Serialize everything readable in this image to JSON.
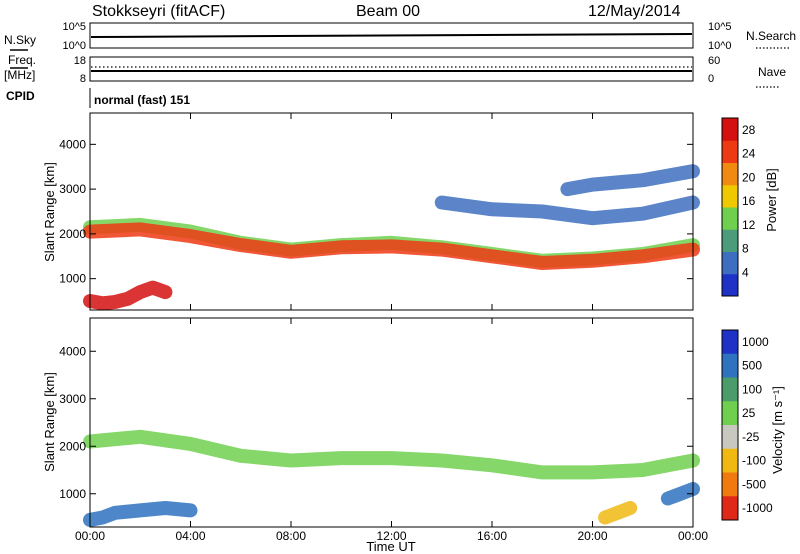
{
  "header": {
    "station": "Stokkseyri (fitACF)",
    "beam": "Beam 00",
    "date": "12/May/2014"
  },
  "side_labels": {
    "nsky": "N.Sky",
    "freq": "Freq.",
    "mhz": "[MHz]",
    "cpid": "CPID",
    "nsearch": "N.Search",
    "nave": "Nave"
  },
  "status_panels": {
    "nsky_ticks": [
      "10^5",
      "10^0"
    ],
    "nsearch_ticks": [
      "10^5",
      "10^0"
    ],
    "freq_ticks": [
      "18",
      "8"
    ],
    "nave_ticks": [
      "60",
      "0"
    ],
    "cpid_text": "normal (fast) 151"
  },
  "colors": {
    "power": [
      "#1e32c8",
      "#3e6ec0",
      "#4a9c7a",
      "#6ed04e",
      "#f0c800",
      "#f08a10",
      "#ee3a14",
      "#d41010"
    ],
    "velocity": [
      "#1e32c8",
      "#2e72c0",
      "#4a9c6a",
      "#6ed04e",
      "#c8c8c0",
      "#f0b810",
      "#f07a10",
      "#e02818"
    ]
  },
  "chart_data": [
    {
      "type": "heatmap",
      "title": "",
      "ylabel": "Slant Range [km]",
      "xlabel": "",
      "x_ticks": [
        "00:00",
        "04:00",
        "08:00",
        "12:00",
        "16:00",
        "20:00",
        "00:00"
      ],
      "y_ticks": [
        1000,
        2000,
        3000,
        4000
      ],
      "ylim": [
        300,
        4700
      ],
      "x_range_hours": [
        0,
        24
      ],
      "colorbar": {
        "label": "Power [dB]",
        "ticks": [
          4,
          8,
          12,
          16,
          20,
          24,
          28
        ],
        "range": [
          0,
          30
        ]
      },
      "echo_bands_hours_km": [
        {
          "x": [
            0,
            2,
            4,
            6,
            8,
            10,
            12,
            14,
            16,
            18,
            20,
            22,
            24
          ],
          "y": [
            2150,
            2200,
            2050,
            1800,
            1650,
            1750,
            1800,
            1700,
            1550,
            1400,
            1450,
            1550,
            1750
          ],
          "level": 12
        },
        {
          "x": [
            0,
            2,
            4,
            6,
            8,
            10,
            12,
            14,
            16,
            18,
            20,
            22,
            24
          ],
          "y": [
            2050,
            2100,
            1950,
            1750,
            1600,
            1700,
            1720,
            1650,
            1500,
            1350,
            1400,
            1500,
            1650
          ],
          "level": 25
        },
        {
          "x": [
            0,
            0.5,
            1,
            1.5,
            2,
            2.5,
            3
          ],
          "y": [
            500,
            450,
            480,
            550,
            700,
            800,
            700
          ],
          "level": 28
        },
        {
          "x": [
            14,
            16,
            18,
            20,
            22,
            24
          ],
          "y": [
            2700,
            2550,
            2500,
            2350,
            2450,
            2700
          ],
          "level": 6
        },
        {
          "x": [
            19,
            20,
            21,
            22,
            23,
            24
          ],
          "y": [
            3000,
            3100,
            3150,
            3200,
            3300,
            3400
          ],
          "level": 4
        }
      ]
    },
    {
      "type": "heatmap",
      "title": "",
      "ylabel": "Slant Range [km]",
      "xlabel": "Time UT",
      "x_ticks": [
        "00:00",
        "04:00",
        "08:00",
        "12:00",
        "16:00",
        "20:00",
        "00:00"
      ],
      "y_ticks": [
        1000,
        2000,
        3000,
        4000
      ],
      "ylim": [
        300,
        4700
      ],
      "x_range_hours": [
        0,
        24
      ],
      "colorbar": {
        "label": "Velocity [m s⁻¹]",
        "ticks": [
          1000,
          500,
          100,
          25,
          -25,
          -100,
          -500,
          -1000
        ]
      },
      "echo_bands_hours_km": [
        {
          "x": [
            0,
            2,
            4,
            6,
            8,
            10,
            12,
            14,
            16,
            18,
            20,
            22,
            24
          ],
          "y": [
            2100,
            2200,
            2050,
            1800,
            1700,
            1750,
            1750,
            1700,
            1600,
            1450,
            1450,
            1500,
            1700
          ],
          "velocity": 0
        },
        {
          "x": [
            0,
            0.5,
            1,
            2,
            3,
            4
          ],
          "y": [
            450,
            500,
            600,
            650,
            700,
            650
          ],
          "velocity": 200
        },
        {
          "x": [
            20.5,
            21,
            21.5
          ],
          "y": [
            500,
            600,
            700
          ],
          "velocity": -300
        },
        {
          "x": [
            23,
            23.5,
            24
          ],
          "y": [
            900,
            1000,
            1100
          ],
          "velocity": 150
        }
      ]
    }
  ]
}
